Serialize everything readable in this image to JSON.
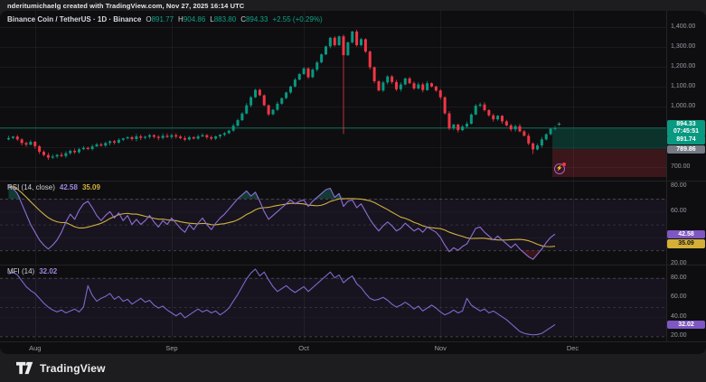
{
  "attribution": "nderitumichaelg created with TradingView.com, Nov 27, 2025 16:14 UTC",
  "legend": {
    "title": "Binance Coin / TetherUS · 1D · Binance",
    "o_key": "O",
    "o": "891.77",
    "h_key": "H",
    "h": "904.86",
    "l_key": "L",
    "l": "883.80",
    "c_key": "C",
    "c": "894.33",
    "change": "+2.55 (+0.29%)"
  },
  "indicators": {
    "rsi_label": "RSI (14, close)",
    "rsi_value": "42.58",
    "rsi_ma_value": "35.09",
    "mfi_label": "MFI (14)",
    "mfi_value": "32.02"
  },
  "price_axis": {
    "current": {
      "price": "894.33",
      "countdown": "07:45:51"
    },
    "target": "891.74",
    "entry": "789.86",
    "rsi_value": "42.58",
    "rsi_ma_value": "35.09",
    "mfi_value": "32.02"
  },
  "footer": {
    "brand": "TradingView"
  },
  "colors": {
    "up": "#089981",
    "down": "#f23645",
    "price_line": "#089981",
    "zone_profit": "rgba(8,153,129,0.26)",
    "zone_loss": "rgba(242,54,69,0.20)",
    "rsi_line": "#8f6fd8",
    "rsi_ma_line": "#d2b13e",
    "mfi_line": "#8268cf",
    "band_fill": "rgba(126,87,194,0.09)",
    "overbought_fill": "rgba(34,171,148,0.28)",
    "oversold_fill": "rgba(242,54,69,0.18)",
    "grid": "rgba(255,255,255,0.05)",
    "dash": "rgba(150,153,163,0.5)",
    "label_green_bg": "#089981",
    "label_gray_bg": "#787b86",
    "label_purple_bg": "#7e57c2",
    "label_yellow_bg": "#d4af37"
  },
  "chart_data": {
    "type": "candlestick",
    "title": "Binance Coin / TetherUS, 1D, Binance",
    "x_axis_months": [
      "Aug",
      "Sep",
      "Oct",
      "Nov",
      "Dec"
    ],
    "month_start_indices": [
      6,
      37,
      67,
      98,
      128
    ],
    "price_pane": {
      "ylim": [
        640,
        1420
      ],
      "axis_ticks": [
        {
          "label": "1,400.00",
          "v": 1400
        },
        {
          "label": "1,300.00",
          "v": 1300
        },
        {
          "label": "1,200.00",
          "v": 1200
        },
        {
          "label": "1,100.00",
          "v": 1100
        },
        {
          "label": "1,000.00",
          "v": 1000
        },
        {
          "label": "700.00",
          "v": 700
        }
      ],
      "closes": [
        845,
        852,
        838,
        820,
        812,
        826,
        804,
        776,
        760,
        747,
        753,
        761,
        755,
        769,
        781,
        774,
        789,
        796,
        790,
        803,
        813,
        807,
        820,
        829,
        822,
        836,
        843,
        849,
        840,
        853,
        846,
        851,
        859,
        851,
        845,
        856,
        850,
        859,
        852,
        844,
        837,
        849,
        842,
        853,
        859,
        849,
        842,
        853,
        861,
        869,
        882,
        906,
        934,
        967,
        1008,
        1048,
        1085,
        1058,
        1008,
        963,
        986,
        1016,
        1044,
        1072,
        1102,
        1136,
        1164,
        1192,
        1148,
        1186,
        1222,
        1262,
        1302,
        1345,
        1308,
        1352,
        1258,
        1322,
        1376,
        1308,
        1338,
        1276,
        1198,
        1128,
        1082,
        1122,
        1152,
        1124,
        1088,
        1112,
        1142,
        1118,
        1092,
        1112,
        1084,
        1118,
        1102,
        1082,
        1048,
        968,
        893,
        912,
        884,
        902,
        916,
        962,
        1006,
        1012,
        984,
        958,
        938,
        956,
        928,
        908,
        888,
        904,
        878,
        856,
        818,
        788,
        808,
        838,
        864,
        891.78,
        894.33
      ],
      "wick_overrides": {
        "76": {
          "low": 865
        },
        "119": {
          "low": 765
        }
      },
      "last_candle": {
        "o": 891.77,
        "h": 904.86,
        "l": 883.8,
        "c": 894.33
      },
      "current_price": 894.33,
      "position_tool": {
        "entry": 789.86,
        "target": 891.74,
        "stop": 650,
        "start_index": 123.4
      }
    },
    "rsi_pane": {
      "levels": [
        70,
        50,
        30
      ],
      "axis_ticks": [
        {
          "label": "80.00",
          "v": 80
        },
        {
          "label": "60.00",
          "v": 60
        },
        {
          "label": "20.00",
          "v": 20
        }
      ],
      "values": [
        80,
        78,
        74,
        66,
        58,
        50,
        44,
        38,
        34,
        31,
        34,
        38,
        44,
        52,
        58,
        54,
        61,
        66,
        68,
        63,
        57,
        53,
        57,
        60,
        55,
        59,
        53,
        57,
        50,
        54,
        50,
        53,
        57,
        52,
        48,
        53,
        50,
        55,
        51,
        47,
        44,
        50,
        46,
        51,
        55,
        50,
        46,
        51,
        55,
        58,
        62,
        66,
        70,
        73,
        76,
        72,
        75,
        68,
        60,
        54,
        57,
        60,
        63,
        66,
        69,
        66,
        68,
        69,
        64,
        68,
        71,
        74,
        77,
        78,
        71,
        74,
        64,
        68,
        69,
        63,
        66,
        60,
        54,
        49,
        45,
        49,
        52,
        49,
        45,
        47,
        51,
        48,
        45,
        47,
        44,
        48,
        46,
        44,
        40,
        34,
        29,
        32,
        30,
        33,
        35,
        41,
        47,
        48,
        44,
        41,
        38,
        41,
        38,
        35,
        32,
        35,
        31,
        28,
        25,
        23,
        27,
        31,
        36,
        40,
        42.58
      ],
      "ma_period": 14
    },
    "mfi_pane": {
      "levels": [
        80,
        50,
        20
      ],
      "axis_ticks": [
        {
          "label": "80.00",
          "v": 80
        },
        {
          "label": "60.00",
          "v": 60
        },
        {
          "label": "40.00",
          "v": 40
        },
        {
          "label": "20.00",
          "v": 20
        }
      ],
      "values": [
        84,
        86,
        83,
        77,
        71,
        67,
        64,
        59,
        54,
        50,
        47,
        45,
        47,
        44,
        46,
        48,
        45,
        50,
        72,
        62,
        56,
        59,
        61,
        64,
        58,
        61,
        56,
        58,
        53,
        56,
        59,
        55,
        57,
        52,
        49,
        51,
        47,
        44,
        41,
        44,
        39,
        42,
        45,
        48,
        45,
        47,
        44,
        46,
        42,
        45,
        49,
        56,
        63,
        71,
        79,
        85,
        89,
        82,
        86,
        78,
        71,
        66,
        69,
        72,
        68,
        65,
        68,
        71,
        66,
        70,
        74,
        78,
        82,
        86,
        80,
        83,
        75,
        79,
        82,
        74,
        70,
        64,
        59,
        57,
        58,
        60,
        57,
        53,
        50,
        52,
        55,
        52,
        48,
        51,
        46,
        49,
        52,
        49,
        45,
        42,
        44,
        47,
        44,
        46,
        59,
        52,
        49,
        46,
        48,
        44,
        46,
        43,
        40,
        37,
        33,
        29,
        25,
        23,
        22,
        21.5,
        21.8,
        23,
        26,
        29,
        32.02
      ]
    }
  }
}
